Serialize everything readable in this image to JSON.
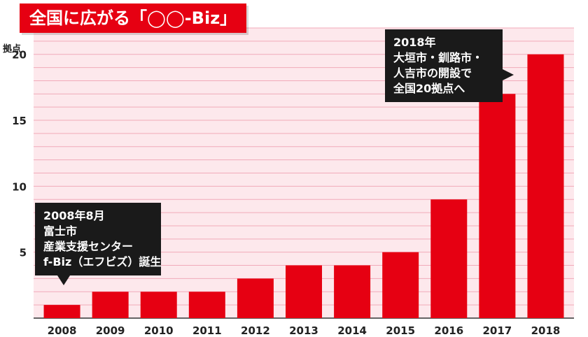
{
  "chart_data": {
    "type": "bar",
    "title": "全国に広がる「◯◯-Biz」",
    "ylabel": "拠点",
    "xlabel": "",
    "categories": [
      "2008",
      "2009",
      "2010",
      "2011",
      "2012",
      "2013",
      "2014",
      "2015",
      "2016",
      "2017",
      "2018"
    ],
    "values": [
      1,
      2,
      2,
      2,
      3,
      4,
      4,
      5,
      9,
      17,
      20
    ],
    "ylim": [
      0,
      22
    ],
    "yticks": [
      5,
      10,
      15,
      20
    ],
    "grid": true,
    "annotations": [
      {
        "category": "2008",
        "lines": [
          "2008年8月",
          "富士市",
          "産業支援センター",
          "f-Biz（エフビズ）誕生"
        ]
      },
      {
        "category": "2018",
        "lines": [
          "2018年",
          "大垣市・釧路市・",
          "人吉市の開設で",
          "全国20拠点へ"
        ]
      }
    ]
  },
  "colors": {
    "bar": "#e60012",
    "background": "#fde8ec",
    "gridline": "#f1aab9",
    "callout": "#1a1a1a",
    "title_bg": "#e60012"
  }
}
